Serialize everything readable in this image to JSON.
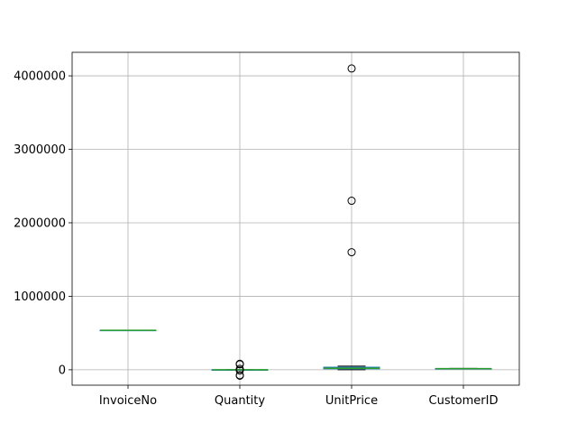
{
  "chart_data": {
    "type": "box",
    "title": "",
    "xlabel": "",
    "ylabel": "",
    "ylim": [
      -210000,
      4320000
    ],
    "grid": true,
    "categories": [
      "InvoiceNo",
      "Quantity",
      "UnitPrice",
      "CustomerID"
    ],
    "yticks": [
      0,
      1000000,
      2000000,
      3000000,
      4000000
    ],
    "ytick_labels": [
      "0",
      "1000000",
      "2000000",
      "3000000",
      "4000000"
    ],
    "boxes": [
      {
        "category": "InvoiceNo",
        "whisker_low": 536365,
        "q1": 536900,
        "median": 537500,
        "q3": 538200,
        "whisker_high": 539000,
        "outliers": []
      },
      {
        "category": "Quantity",
        "whisker_low": -10,
        "q1": 1,
        "median": 3,
        "q3": 10,
        "whisker_high": 25,
        "outliers": [
          -80995,
          -74215,
          -9600,
          12540,
          74215,
          80995
        ]
      },
      {
        "category": "UnitPrice",
        "whisker_low": 0,
        "q1": 13000,
        "median": 20000,
        "q3": 35000,
        "whisker_high": 50000,
        "outliers": [
          1600000,
          2300000,
          4100000
        ]
      },
      {
        "category": "CustomerID",
        "whisker_low": 12346,
        "q1": 13953,
        "median": 15152,
        "q3": 16791,
        "whisker_high": 18287,
        "outliers": []
      }
    ],
    "colors": {
      "box": "#1f77b4",
      "whisker": "#1f77b4",
      "median": "#2ca02c",
      "cap": "#000000",
      "flier": "#000000",
      "grid": "#b0b0b0"
    }
  }
}
